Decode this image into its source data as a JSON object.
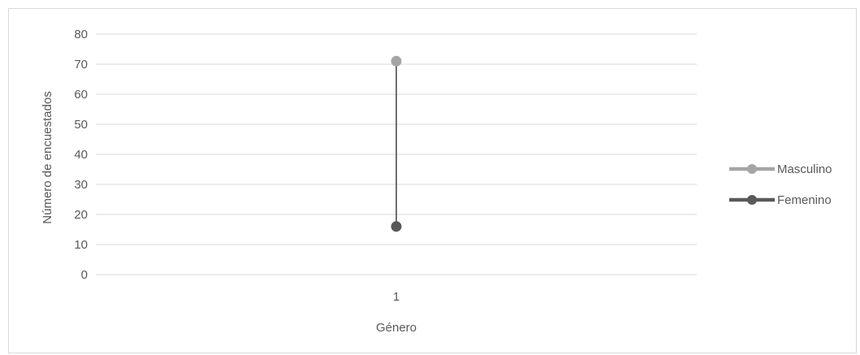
{
  "chart_data": {
    "type": "line",
    "categories": [
      "1"
    ],
    "series": [
      {
        "name": "Masculino",
        "values": [
          71
        ],
        "color": "#a5a5a5"
      },
      {
        "name": "Femenino",
        "values": [
          16
        ],
        "color": "#595959"
      }
    ],
    "xlabel": "Género",
    "ylabel": "Número de encuestados",
    "ylim": [
      0,
      80
    ],
    "yticks": [
      0,
      10,
      20,
      30,
      40,
      50,
      60,
      70,
      80
    ],
    "grid": true,
    "legend_position": "right",
    "high_low_line_color": "#404040",
    "gridline_color": "#d9d9d9"
  }
}
